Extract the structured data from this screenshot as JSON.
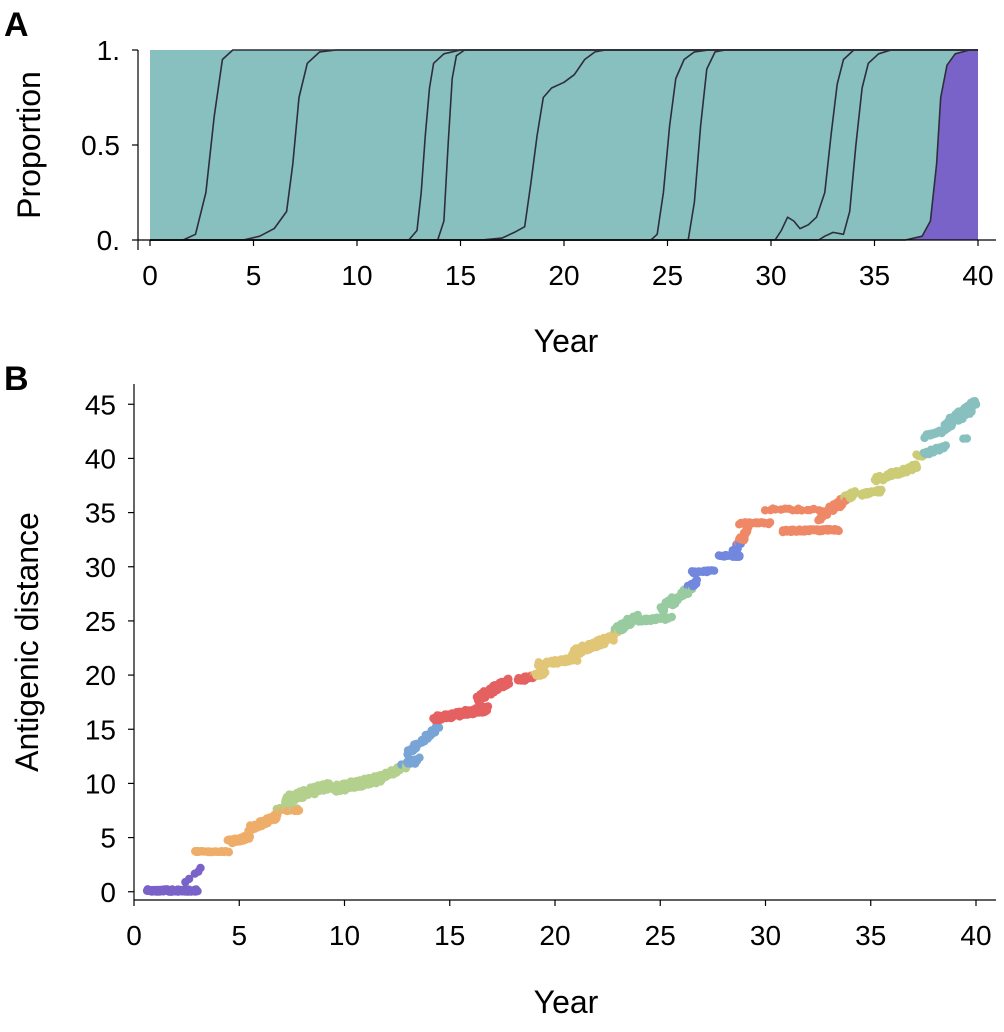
{
  "figure": {
    "panels": [
      "A",
      "B"
    ],
    "colors": {
      "c1": "#7a63c8",
      "c2": "#eead68",
      "c3": "#b3d08c",
      "c4": "#78a4d6",
      "c5": "#e56060",
      "c6": "#e2c677",
      "c7": "#98cba0",
      "c8": "#7287de",
      "c9": "#ee8866",
      "c10": "#cccc77",
      "c11": "#88bfbf"
    }
  },
  "chart_data": [
    {
      "type": "area",
      "panel": "A",
      "xlabel": "Year",
      "ylabel": "Proportion",
      "xlim": [
        0,
        40
      ],
      "ylim": [
        0,
        1
      ],
      "xticks": [
        "0",
        "5",
        "10",
        "15",
        "20",
        "25",
        "30",
        "35",
        "40"
      ],
      "yticks": [
        "0.",
        "0.5",
        "1."
      ],
      "grid": false,
      "legend": "none",
      "boundaries": [
        {
          "points": [
            [
              0,
              0
            ],
            [
              1.6,
              0
            ],
            [
              2.2,
              0.03
            ],
            [
              2.7,
              0.25
            ],
            [
              3.1,
              0.65
            ],
            [
              3.5,
              0.95
            ],
            [
              4,
              1
            ],
            [
              40,
              1
            ]
          ]
        },
        {
          "points": [
            [
              0,
              0
            ],
            [
              4.5,
              0
            ],
            [
              5.3,
              0.02
            ],
            [
              6,
              0.06
            ],
            [
              6.6,
              0.15
            ],
            [
              6.9,
              0.4
            ],
            [
              7.2,
              0.75
            ],
            [
              7.6,
              0.93
            ],
            [
              8.2,
              0.99
            ],
            [
              9,
              1
            ],
            [
              40,
              1
            ]
          ]
        },
        {
          "points": [
            [
              0,
              0
            ],
            [
              12.5,
              0
            ],
            [
              12.9,
              0.05
            ],
            [
              13.1,
              0.25
            ],
            [
              13.3,
              0.55
            ],
            [
              13.5,
              0.8
            ],
            [
              13.7,
              0.93
            ],
            [
              14.2,
              0.98
            ],
            [
              15,
              1
            ],
            [
              40,
              1
            ]
          ]
        },
        {
          "points": [
            [
              0,
              0
            ],
            [
              13.9,
              0
            ],
            [
              14.2,
              0.1
            ],
            [
              14.4,
              0.5
            ],
            [
              14.6,
              0.85
            ],
            [
              14.8,
              0.97
            ],
            [
              15.2,
              1
            ],
            [
              40,
              1
            ]
          ]
        },
        {
          "points": [
            [
              0,
              0
            ],
            [
              16,
              0
            ],
            [
              17,
              0.01
            ],
            [
              17.6,
              0.04
            ],
            [
              18.1,
              0.07
            ],
            [
              18.4,
              0.3
            ],
            [
              18.7,
              0.55
            ],
            [
              19,
              0.75
            ],
            [
              19.4,
              0.8
            ],
            [
              20,
              0.83
            ],
            [
              20.5,
              0.87
            ],
            [
              21,
              0.95
            ],
            [
              21.5,
              0.99
            ],
            [
              22,
              1
            ],
            [
              40,
              1
            ]
          ]
        },
        {
          "points": [
            [
              0,
              0
            ],
            [
              24.2,
              0
            ],
            [
              24.5,
              0.03
            ],
            [
              24.8,
              0.25
            ],
            [
              25.1,
              0.6
            ],
            [
              25.4,
              0.85
            ],
            [
              25.8,
              0.95
            ],
            [
              26.3,
              0.99
            ],
            [
              27,
              1
            ],
            [
              40,
              1
            ]
          ]
        },
        {
          "points": [
            [
              0,
              0
            ],
            [
              26,
              0
            ],
            [
              26.3,
              0.2
            ],
            [
              26.6,
              0.6
            ],
            [
              26.9,
              0.9
            ],
            [
              27.3,
              0.99
            ],
            [
              27.8,
              1
            ],
            [
              40,
              1
            ]
          ]
        },
        {
          "points": [
            [
              0,
              0
            ],
            [
              30.2,
              0
            ],
            [
              30.5,
              0.05
            ],
            [
              30.8,
              0.12
            ],
            [
              31.1,
              0.1
            ],
            [
              31.4,
              0.06
            ],
            [
              31.8,
              0.08
            ],
            [
              32.2,
              0.12
            ],
            [
              32.6,
              0.25
            ],
            [
              32.9,
              0.55
            ],
            [
              33.2,
              0.82
            ],
            [
              33.5,
              0.95
            ],
            [
              34,
              1
            ],
            [
              40,
              1
            ]
          ]
        },
        {
          "points": [
            [
              0,
              0
            ],
            [
              32.3,
              0
            ],
            [
              32.6,
              0.02
            ],
            [
              33,
              0.04
            ],
            [
              33.5,
              0.03
            ],
            [
              33.8,
              0.15
            ],
            [
              34.1,
              0.5
            ],
            [
              34.4,
              0.8
            ],
            [
              34.7,
              0.93
            ],
            [
              35.2,
              0.98
            ],
            [
              35.8,
              1
            ],
            [
              40,
              1
            ]
          ]
        },
        {
          "points": [
            [
              0,
              0
            ],
            [
              36.5,
              0
            ],
            [
              37.3,
              0.02
            ],
            [
              37.7,
              0.1
            ],
            [
              38,
              0.4
            ],
            [
              38.2,
              0.75
            ],
            [
              38.5,
              0.92
            ],
            [
              38.9,
              0.98
            ],
            [
              39.6,
              1
            ],
            [
              40,
              1
            ]
          ]
        }
      ]
    },
    {
      "type": "scatter",
      "panel": "B",
      "xlabel": "Year",
      "ylabel": "Antigenic distance",
      "xlim": [
        0,
        40
      ],
      "ylim": [
        -1.5,
        46.5
      ],
      "xticks": [
        "0",
        "5",
        "10",
        "15",
        "20",
        "25",
        "30",
        "35",
        "40"
      ],
      "yticks": [
        "0",
        "5",
        "10",
        "15",
        "20",
        "25",
        "30",
        "35",
        "40",
        "45"
      ],
      "grid": false,
      "legend": "none",
      "clusters": [
        {
          "x": [
            0.6,
            3.0
          ],
          "y": [
            0.0,
            0.0
          ],
          "spread": 0.5,
          "n": 80
        },
        {
          "x": [
            2.5,
            3.2
          ],
          "y": [
            1.0,
            2.2
          ],
          "spread": 0.3,
          "n": 5
        },
        {
          "x": [
            2.9,
            4.5
          ],
          "y": [
            3.7,
            3.7
          ],
          "spread": 0.1,
          "n": 25
        },
        {
          "x": [
            4.5,
            5.5
          ],
          "y": [
            4.6,
            5.0
          ],
          "spread": 0.4,
          "n": 45
        },
        {
          "x": [
            5.5,
            6.8
          ],
          "y": [
            5.8,
            7.0
          ],
          "spread": 0.5,
          "n": 50
        },
        {
          "x": [
            6.8,
            7.8
          ],
          "y": [
            7.6,
            7.6
          ],
          "spread": 0.3,
          "n": 40
        },
        {
          "x": [
            7.2,
            9.2
          ],
          "y": [
            8.5,
            9.8
          ],
          "spread": 0.7,
          "n": 80
        },
        {
          "x": [
            9.5,
            11.8
          ],
          "y": [
            9.5,
            10.5
          ],
          "spread": 0.7,
          "n": 120
        },
        {
          "x": [
            12.0,
            13.5
          ],
          "y": [
            10.8,
            12.2
          ],
          "spread": 0.5,
          "n": 45
        },
        {
          "x": [
            13.0,
            14.5
          ],
          "y": [
            12.8,
            15.2
          ],
          "spread": 0.5,
          "n": 35
        },
        {
          "x": [
            14.3,
            16.8
          ],
          "y": [
            16.0,
            16.9
          ],
          "spread": 0.5,
          "n": 80
        },
        {
          "x": [
            16.3,
            17.8
          ],
          "y": [
            17.8,
            19.5
          ],
          "spread": 0.6,
          "n": 90
        },
        {
          "x": [
            18.2,
            19.5
          ],
          "y": [
            19.5,
            20.2
          ],
          "spread": 0.4,
          "n": 45
        },
        {
          "x": [
            19.2,
            21.0
          ],
          "y": [
            21.0,
            21.5
          ],
          "spread": 0.4,
          "n": 40
        },
        {
          "x": [
            20.8,
            22.8
          ],
          "y": [
            22.0,
            23.5
          ],
          "spread": 0.6,
          "n": 70
        },
        {
          "x": [
            22.8,
            24.0
          ],
          "y": [
            24.0,
            25.5
          ],
          "spread": 0.6,
          "n": 40
        },
        {
          "x": [
            24.0,
            25.5
          ],
          "y": [
            25.0,
            25.3
          ],
          "spread": 0.3,
          "n": 30
        },
        {
          "x": [
            25.0,
            26.8
          ],
          "y": [
            26.0,
            28.5
          ],
          "spread": 0.8,
          "n": 50
        },
        {
          "x": [
            26.5,
            27.5
          ],
          "y": [
            29.5,
            29.6
          ],
          "spread": 0.2,
          "n": 15
        },
        {
          "x": [
            27.8,
            28.8
          ],
          "y": [
            31.0,
            31.0
          ],
          "spread": 0.2,
          "n": 20
        },
        {
          "x": [
            28.5,
            29.2
          ],
          "y": [
            31.5,
            33.5
          ],
          "spread": 0.5,
          "n": 30
        },
        {
          "x": [
            28.8,
            30.2
          ],
          "y": [
            34.0,
            34.0
          ],
          "spread": 0.2,
          "n": 25
        },
        {
          "x": [
            30.8,
            33.5
          ],
          "y": [
            33.3,
            33.4
          ],
          "spread": 0.2,
          "n": 60
        },
        {
          "x": [
            30.0,
            32.5
          ],
          "y": [
            35.3,
            35.3
          ],
          "spread": 0.2,
          "n": 15
        },
        {
          "x": [
            32.5,
            34.2
          ],
          "y": [
            34.5,
            36.8
          ],
          "spread": 0.6,
          "n": 50
        },
        {
          "x": [
            34.5,
            35.5
          ],
          "y": [
            36.6,
            37.0
          ],
          "spread": 0.3,
          "n": 20
        },
        {
          "x": [
            35.2,
            37.2
          ],
          "y": [
            38.0,
            39.3
          ],
          "spread": 0.5,
          "n": 55
        },
        {
          "x": [
            37.2,
            38.5
          ],
          "y": [
            40.2,
            41.0
          ],
          "spread": 0.4,
          "n": 30
        },
        {
          "x": [
            37.5,
            38.7
          ],
          "y": [
            42.0,
            42.7
          ],
          "spread": 0.3,
          "n": 25
        },
        {
          "x": [
            38.5,
            40.0
          ],
          "y": [
            43.0,
            45.0
          ],
          "spread": 0.8,
          "n": 70
        },
        {
          "x": [
            39.4,
            39.6
          ],
          "y": [
            41.8,
            41.8
          ],
          "spread": 0.1,
          "n": 2
        }
      ]
    }
  ]
}
